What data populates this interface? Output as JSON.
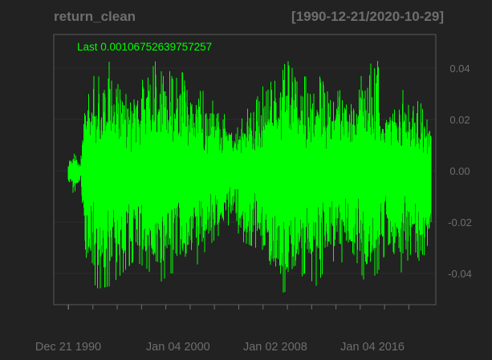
{
  "chart_data": {
    "type": "line",
    "title": "return_clean",
    "date_range": "[1990-12-21/2020-10-29]",
    "last_label": "Last 0.00106752639757257",
    "x_tick_labels": [
      "Dec 21 1990",
      "Jan 04 2000",
      "Jan 02 2008",
      "Jan 04 2016"
    ],
    "x_tick_dates": [
      "1990-12-21",
      "2000-01-04",
      "2008-01-02",
      "2016-01-04"
    ],
    "x": {
      "start": "1990-12-21",
      "end": "2020-10-29"
    },
    "y_ticks": [
      0.04,
      0.02,
      0.0,
      -0.02,
      -0.04
    ],
    "y_tick_labels": [
      "0.04",
      "0.02",
      "0.00",
      "-0.02",
      "-0.04"
    ],
    "ylim": [
      -0.052,
      0.052
    ],
    "grid": true,
    "series": [
      {
        "color": "#00ff00",
        "approx_envelope": {
          "dates": [
            "1990-12-21",
            "1991-06-01",
            "1992-01-01",
            "1992-06-01",
            "1993-06-01",
            "1994-06-01",
            "1995-06-01",
            "1996-06-01",
            "1997-06-01",
            "1998-06-01",
            "1999-06-01",
            "2000-06-01",
            "2001-06-01",
            "2002-06-01",
            "2003-06-01",
            "2004-06-01",
            "2005-06-01",
            "2006-06-01",
            "2007-06-01",
            "2008-06-01",
            "2009-06-01",
            "2010-06-01",
            "2011-06-01",
            "2012-06-01",
            "2013-06-01",
            "2014-06-01",
            "2015-06-01",
            "2016-06-01",
            "2017-06-01",
            "2018-06-01",
            "2019-06-01",
            "2020-06-01",
            "2020-10-29"
          ],
          "upper": [
            0.005,
            0.008,
            0.004,
            0.045,
            0.04,
            0.045,
            0.038,
            0.03,
            0.04,
            0.045,
            0.04,
            0.042,
            0.035,
            0.03,
            0.025,
            0.02,
            0.025,
            0.03,
            0.04,
            0.047,
            0.045,
            0.04,
            0.04,
            0.035,
            0.04,
            0.03,
            0.048,
            0.045,
            0.03,
            0.035,
            0.03,
            0.025,
            0.02
          ],
          "lower": [
            -0.005,
            -0.009,
            -0.004,
            -0.04,
            -0.046,
            -0.045,
            -0.04,
            -0.035,
            -0.038,
            -0.044,
            -0.04,
            -0.04,
            -0.038,
            -0.03,
            -0.025,
            -0.02,
            -0.028,
            -0.03,
            -0.042,
            -0.048,
            -0.046,
            -0.04,
            -0.045,
            -0.035,
            -0.036,
            -0.032,
            -0.044,
            -0.04,
            -0.028,
            -0.04,
            -0.03,
            -0.042,
            -0.02
          ]
        }
      }
    ]
  }
}
